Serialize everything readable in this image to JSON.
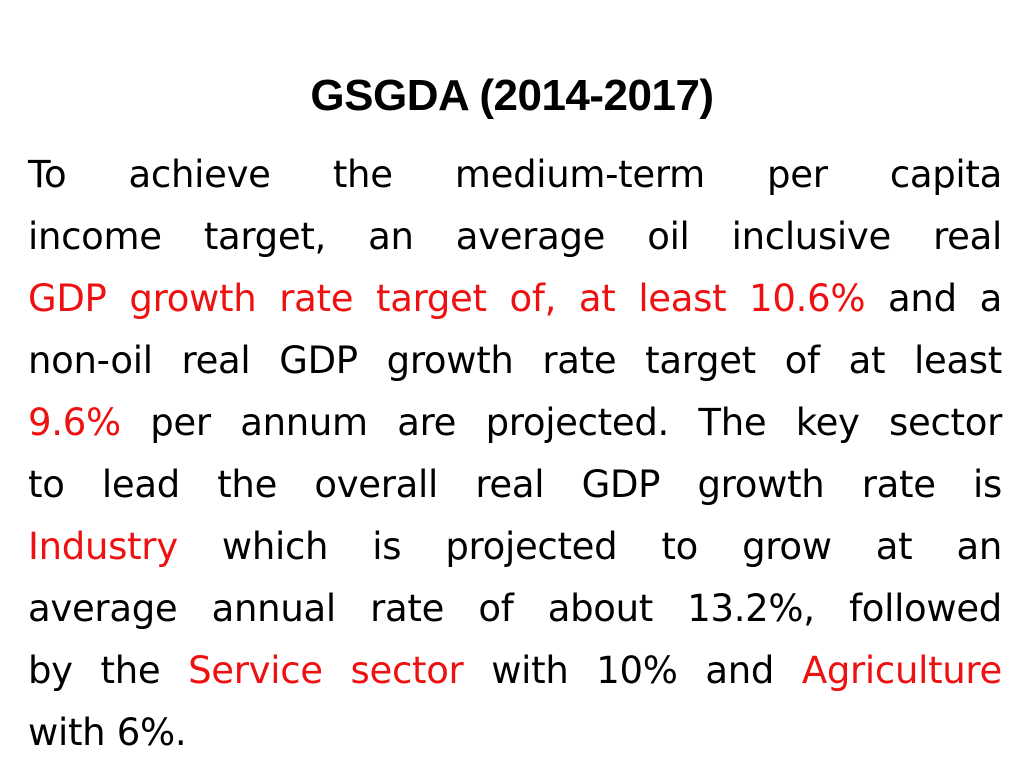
{
  "slide": {
    "title": "GSGDA (2014-2017)",
    "lines": [
      {
        "segments": [
          {
            "text": "To achieve the medium-term per capita",
            "highlight": false
          }
        ]
      },
      {
        "segments": [
          {
            "text": "income target, an average oil inclusive real",
            "highlight": false
          }
        ]
      },
      {
        "segments": [
          {
            "text": "GDP growth rate target of, at least 10.6%",
            "highlight": true
          },
          {
            "text": " and a",
            "highlight": false
          }
        ]
      },
      {
        "segments": [
          {
            "text": "non-oil real GDP growth rate target of at least",
            "highlight": false
          }
        ]
      },
      {
        "segments": [
          {
            "text": "9.6%",
            "highlight": true
          },
          {
            "text": " per annum are projected. The key sector",
            "highlight": false
          }
        ]
      },
      {
        "segments": [
          {
            "text": "to lead the overall real GDP growth rate is",
            "highlight": false
          }
        ]
      },
      {
        "segments": [
          {
            "text": "Industry",
            "highlight": true
          },
          {
            "text": " which is projected to grow at an",
            "highlight": false
          }
        ]
      },
      {
        "segments": [
          {
            "text": "average annual rate of about 13.2%, followed",
            "highlight": false
          }
        ]
      },
      {
        "segments": [
          {
            "text": "by the ",
            "highlight": false
          },
          {
            "text": "Service sector",
            "highlight": true
          },
          {
            "text": " with 10% and ",
            "highlight": false
          },
          {
            "text": "Agriculture",
            "highlight": true
          }
        ]
      },
      {
        "segments": [
          {
            "text": "with 6%.",
            "highlight": false
          }
        ]
      }
    ],
    "highlight_color": "#ee1111"
  }
}
